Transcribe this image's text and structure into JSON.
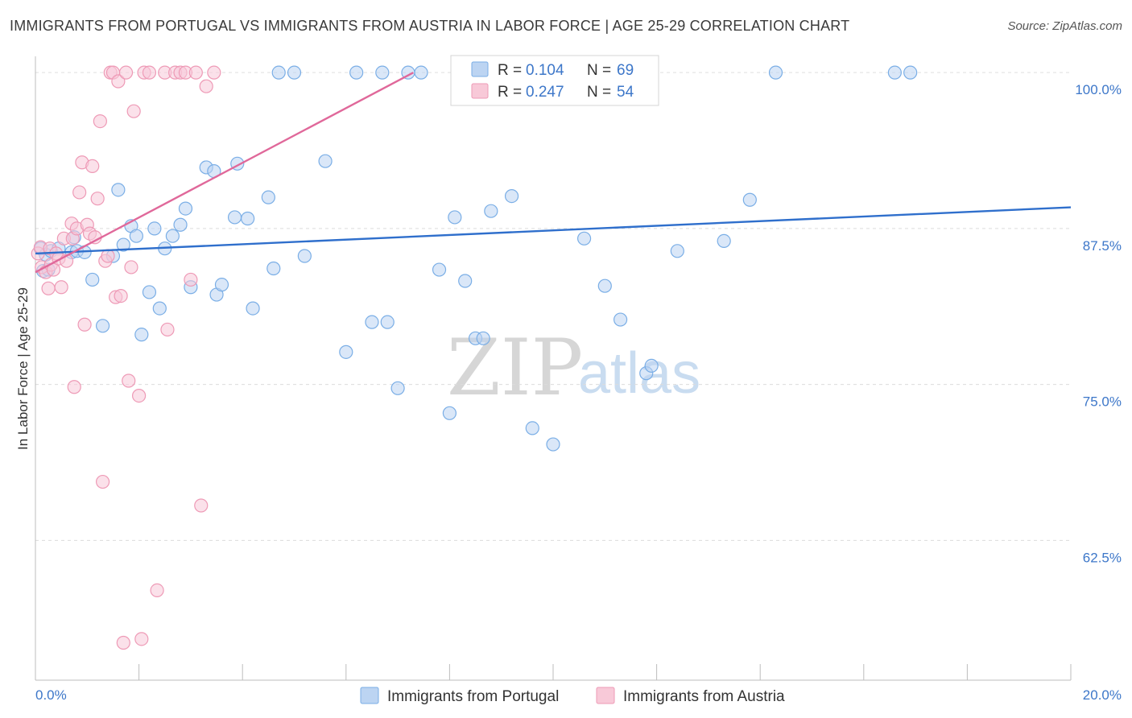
{
  "title": "IMMIGRANTS FROM PORTUGAL VS IMMIGRANTS FROM AUSTRIA IN LABOR FORCE | AGE 25-29 CORRELATION CHART",
  "source": "Source: ZipAtlas.com",
  "watermark": {
    "zip": "ZIP",
    "atlas": "atlas"
  },
  "chart_data": {
    "type": "scatter",
    "title": "IMMIGRANTS FROM PORTUGAL VS IMMIGRANTS FROM AUSTRIA IN LABOR FORCE | AGE 25-29 CORRELATION CHART",
    "xlabel": "",
    "ylabel": "In Labor Force | Age 25-29",
    "xlim": [
      0,
      20
    ],
    "ylim": [
      51.3,
      101.3
    ],
    "x_tick_labels": [
      "0.0%",
      "20.0%"
    ],
    "y_ticks": [
      62.5,
      75.0,
      87.5,
      100.0
    ],
    "y_tick_labels": [
      "62.5%",
      "75.0%",
      "87.5%",
      "100.0%"
    ],
    "grid": true,
    "legend": [
      {
        "name": "Immigrants from Portugal",
        "r_label": "R =",
        "r": "0.104",
        "n_label": "N =",
        "n": "69"
      },
      {
        "name": "Immigrants from Austria",
        "r_label": "R =",
        "r": "0.247",
        "n_label": "N =",
        "n": "54"
      }
    ],
    "series": [
      {
        "name": "Immigrants from Portugal",
        "color": "#7aaee6",
        "fill": "#bcd4f2",
        "trend": {
          "x": [
            0.0,
            20.0
          ],
          "y": [
            85.5,
            89.2
          ],
          "color": "#2f6fcc"
        },
        "points": [
          [
            0.1,
            85.9
          ],
          [
            0.15,
            84.1
          ],
          [
            0.2,
            85.4
          ],
          [
            0.3,
            85.7
          ],
          [
            0.45,
            85.9
          ],
          [
            0.7,
            85.6
          ],
          [
            0.75,
            86.8
          ],
          [
            0.8,
            85.7
          ],
          [
            0.95,
            85.6
          ],
          [
            1.1,
            83.4
          ],
          [
            1.3,
            79.7
          ],
          [
            1.5,
            85.3
          ],
          [
            1.6,
            90.6
          ],
          [
            1.7,
            86.2
          ],
          [
            1.85,
            87.7
          ],
          [
            1.95,
            86.9
          ],
          [
            2.05,
            79.0
          ],
          [
            2.2,
            82.4
          ],
          [
            2.3,
            87.5
          ],
          [
            2.4,
            81.1
          ],
          [
            2.5,
            85.9
          ],
          [
            2.65,
            86.9
          ],
          [
            2.8,
            87.8
          ],
          [
            2.9,
            89.1
          ],
          [
            3.0,
            82.8
          ],
          [
            3.3,
            92.4
          ],
          [
            3.45,
            92.1
          ],
          [
            3.5,
            82.2
          ],
          [
            3.6,
            83.0
          ],
          [
            3.85,
            88.4
          ],
          [
            3.9,
            92.7
          ],
          [
            4.1,
            88.3
          ],
          [
            4.2,
            81.1
          ],
          [
            4.5,
            90.0
          ],
          [
            4.6,
            84.3
          ],
          [
            4.7,
            100.0
          ],
          [
            5.0,
            100.0
          ],
          [
            5.2,
            85.3
          ],
          [
            5.6,
            92.9
          ],
          [
            6.0,
            77.6
          ],
          [
            6.2,
            100.0
          ],
          [
            6.5,
            80.0
          ],
          [
            6.7,
            100.0
          ],
          [
            6.8,
            80.0
          ],
          [
            7.0,
            74.7
          ],
          [
            7.2,
            100.0
          ],
          [
            7.45,
            100.0
          ],
          [
            7.8,
            84.2
          ],
          [
            8.0,
            72.7
          ],
          [
            8.1,
            88.4
          ],
          [
            8.3,
            83.3
          ],
          [
            8.5,
            78.7
          ],
          [
            8.65,
            78.7
          ],
          [
            8.8,
            88.9
          ],
          [
            9.2,
            90.1
          ],
          [
            9.6,
            71.5
          ],
          [
            10.0,
            70.2
          ],
          [
            10.6,
            86.7
          ],
          [
            11.0,
            82.9
          ],
          [
            11.3,
            80.2
          ],
          [
            11.8,
            75.9
          ],
          [
            11.9,
            76.5
          ],
          [
            12.4,
            85.7
          ],
          [
            13.3,
            86.5
          ],
          [
            13.8,
            89.8
          ],
          [
            14.3,
            100.0
          ],
          [
            16.6,
            100.0
          ],
          [
            16.9,
            100.0
          ],
          [
            0.25,
            84.2
          ]
        ]
      },
      {
        "name": "Immigrants from Austria",
        "color": "#ee9ab6",
        "fill": "#f8c9d8",
        "trend": {
          "x": [
            0.0,
            7.3
          ],
          "y": [
            84.0,
            100.0
          ],
          "color": "#e0689a"
        },
        "points": [
          [
            0.05,
            85.5
          ],
          [
            0.1,
            86.0
          ],
          [
            0.12,
            84.4
          ],
          [
            0.2,
            84.0
          ],
          [
            0.25,
            82.7
          ],
          [
            0.28,
            85.9
          ],
          [
            0.3,
            84.6
          ],
          [
            0.35,
            84.2
          ],
          [
            0.4,
            85.5
          ],
          [
            0.45,
            85.1
          ],
          [
            0.5,
            82.8
          ],
          [
            0.55,
            86.7
          ],
          [
            0.6,
            84.9
          ],
          [
            0.7,
            87.9
          ],
          [
            0.72,
            86.7
          ],
          [
            0.75,
            74.8
          ],
          [
            0.8,
            87.5
          ],
          [
            0.85,
            90.4
          ],
          [
            0.9,
            92.8
          ],
          [
            0.95,
            79.8
          ],
          [
            1.0,
            87.8
          ],
          [
            1.05,
            87.1
          ],
          [
            1.1,
            92.5
          ],
          [
            1.15,
            86.8
          ],
          [
            1.2,
            89.9
          ],
          [
            1.25,
            96.1
          ],
          [
            1.3,
            67.2
          ],
          [
            1.35,
            84.9
          ],
          [
            1.4,
            85.3
          ],
          [
            1.45,
            100.0
          ],
          [
            1.5,
            100.0
          ],
          [
            1.55,
            82.0
          ],
          [
            1.6,
            99.3
          ],
          [
            1.65,
            82.1
          ],
          [
            1.7,
            54.3
          ],
          [
            1.75,
            100.0
          ],
          [
            1.8,
            75.3
          ],
          [
            1.85,
            84.4
          ],
          [
            1.9,
            96.9
          ],
          [
            2.0,
            74.1
          ],
          [
            2.05,
            54.6
          ],
          [
            2.1,
            100.0
          ],
          [
            2.2,
            100.0
          ],
          [
            2.35,
            58.5
          ],
          [
            2.5,
            100.0
          ],
          [
            2.55,
            79.4
          ],
          [
            2.7,
            100.0
          ],
          [
            2.8,
            100.0
          ],
          [
            2.9,
            100.0
          ],
          [
            3.0,
            83.4
          ],
          [
            3.1,
            100.0
          ],
          [
            3.2,
            65.3
          ],
          [
            3.3,
            98.9
          ],
          [
            3.45,
            100.0
          ]
        ]
      }
    ]
  }
}
